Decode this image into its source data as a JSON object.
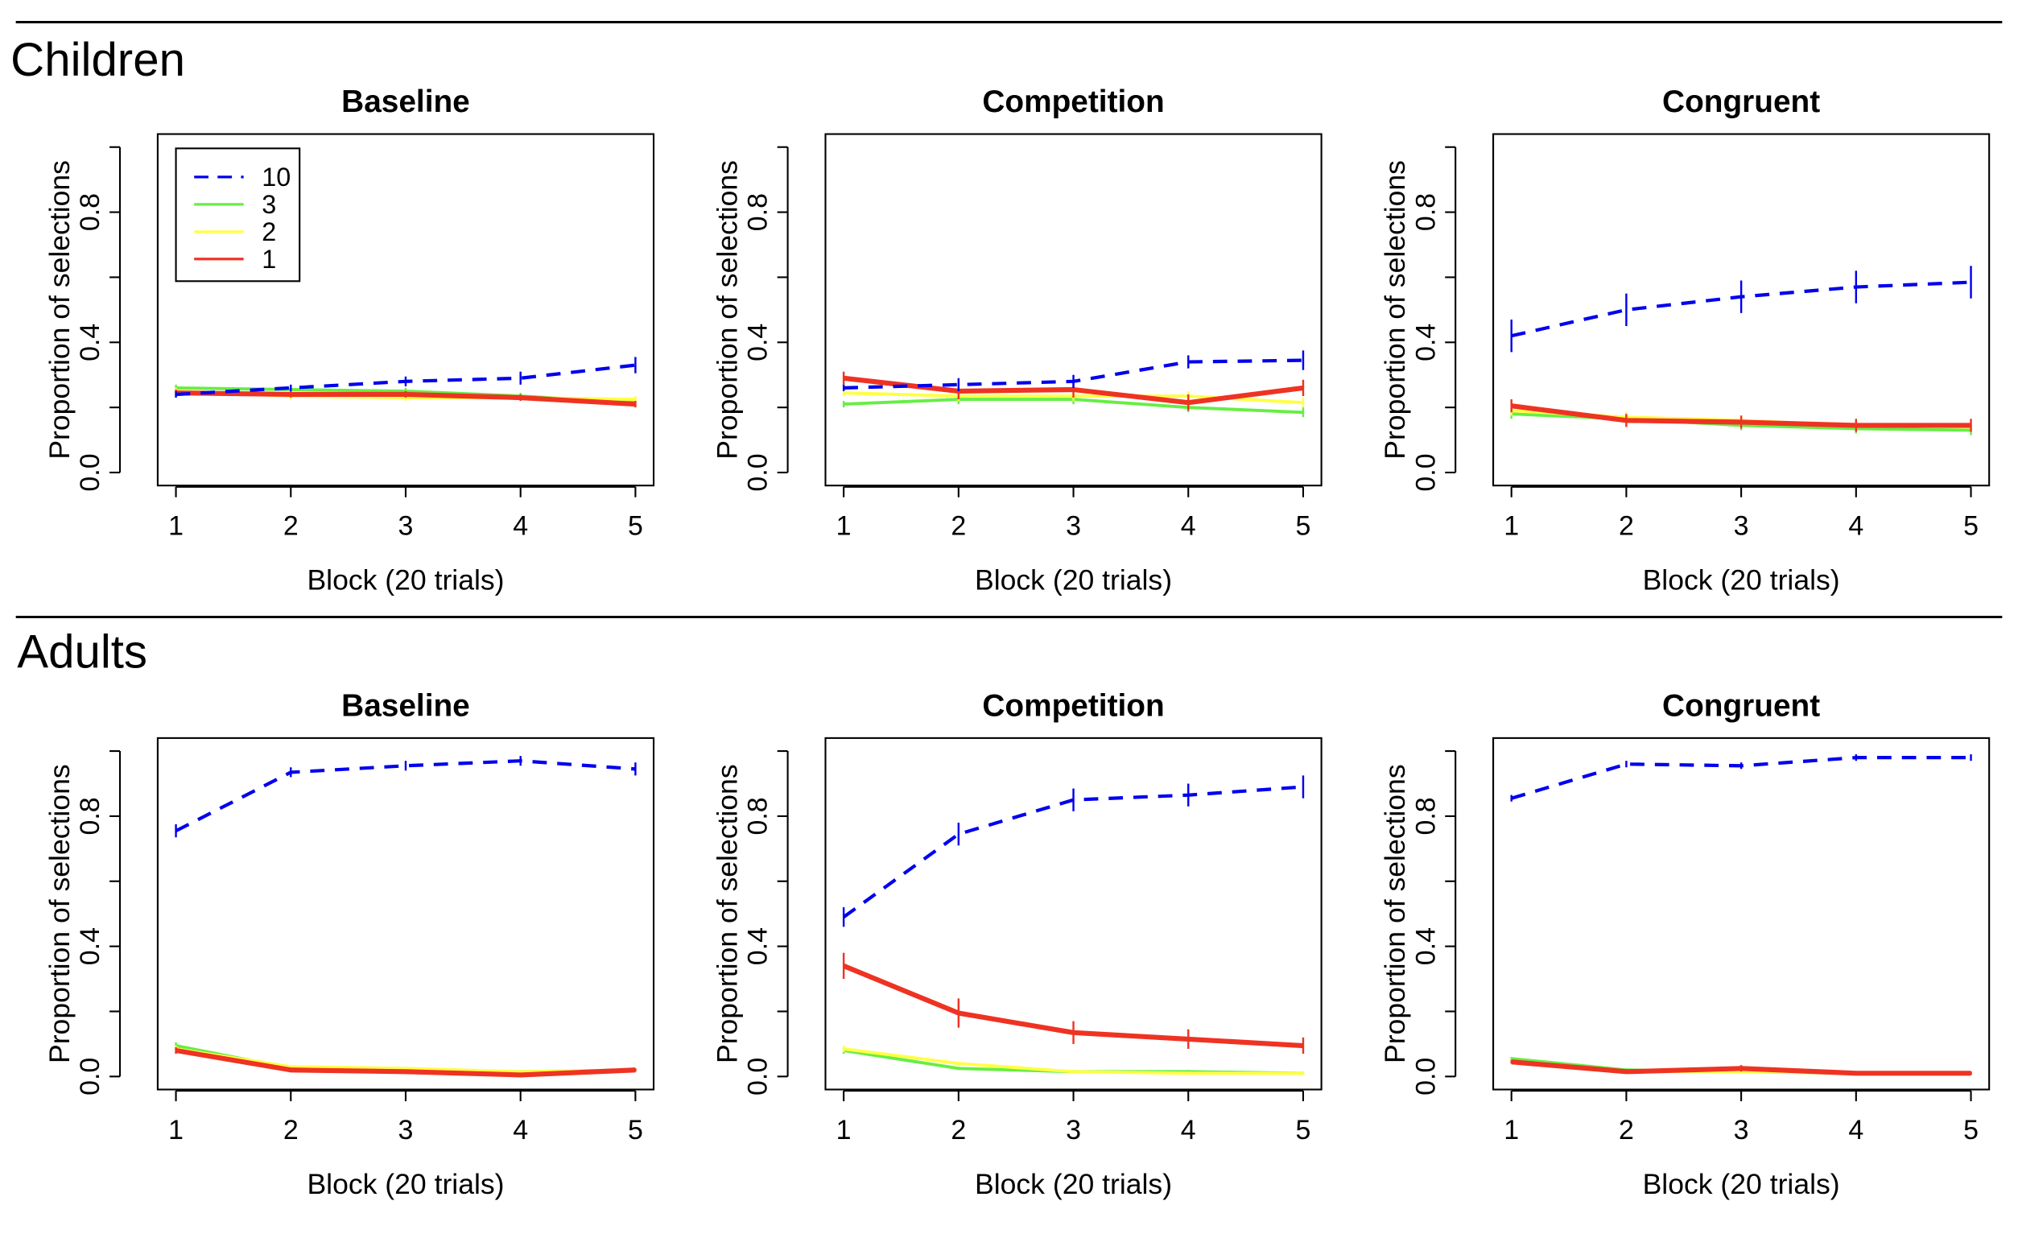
{
  "groups": [
    {
      "label": "Children"
    },
    {
      "label": "Adults"
    }
  ],
  "legend": [
    {
      "label": "10",
      "color": "#0000ee",
      "dashed": true
    },
    {
      "label": "3",
      "color": "#66ee44",
      "dashed": false
    },
    {
      "label": "2",
      "color": "#ffff44",
      "dashed": false
    },
    {
      "label": "1",
      "color": "#ee3322",
      "dashed": false
    }
  ],
  "chart_data": [
    {
      "type": "line",
      "group": "Children",
      "title": "Baseline",
      "xlabel": "Block (20 trials)",
      "ylabel": "Proportion of selections",
      "x": [
        1,
        2,
        3,
        4,
        5
      ],
      "ylim": [
        0,
        1
      ],
      "yticks": [
        "0.0",
        "0.4",
        "0.8"
      ],
      "legend": "top-left",
      "series": [
        {
          "name": "10",
          "values": [
            0.24,
            0.26,
            0.28,
            0.29,
            0.33
          ],
          "errors": [
            0.01,
            0.01,
            0.015,
            0.02,
            0.025
          ]
        },
        {
          "name": "3",
          "values": [
            0.26,
            0.255,
            0.25,
            0.235,
            0.215
          ],
          "errors": [
            0.01,
            0.01,
            0.01,
            0.01,
            0.01
          ]
        },
        {
          "name": "2",
          "values": [
            0.25,
            0.235,
            0.23,
            0.23,
            0.225
          ],
          "errors": [
            0.01,
            0.01,
            0.01,
            0.01,
            0.01
          ]
        },
        {
          "name": "1",
          "values": [
            0.245,
            0.24,
            0.24,
            0.23,
            0.21
          ],
          "errors": [
            0.01,
            0.01,
            0.01,
            0.01,
            0.01
          ]
        }
      ]
    },
    {
      "type": "line",
      "group": "Children",
      "title": "Competition",
      "xlabel": "Block (20 trials)",
      "ylabel": "Proportion of selections",
      "x": [
        1,
        2,
        3,
        4,
        5
      ],
      "ylim": [
        0,
        1
      ],
      "yticks": [
        "0.0",
        "0.4",
        "0.8"
      ],
      "series": [
        {
          "name": "10",
          "values": [
            0.26,
            0.27,
            0.28,
            0.34,
            0.345
          ],
          "errors": [
            0.01,
            0.02,
            0.02,
            0.02,
            0.03
          ]
        },
        {
          "name": "3",
          "values": [
            0.21,
            0.225,
            0.225,
            0.2,
            0.185
          ],
          "errors": [
            0.01,
            0.015,
            0.015,
            0.015,
            0.015
          ]
        },
        {
          "name": "2",
          "values": [
            0.245,
            0.235,
            0.235,
            0.235,
            0.215
          ],
          "errors": [
            0.01,
            0.015,
            0.015,
            0.015,
            0.015
          ]
        },
        {
          "name": "1",
          "values": [
            0.29,
            0.25,
            0.255,
            0.215,
            0.26
          ],
          "errors": [
            0.02,
            0.025,
            0.025,
            0.025,
            0.025
          ]
        }
      ]
    },
    {
      "type": "line",
      "group": "Children",
      "title": "Congruent",
      "xlabel": "Block (20 trials)",
      "ylabel": "Proportion of selections",
      "x": [
        1,
        2,
        3,
        4,
        5
      ],
      "ylim": [
        0,
        1
      ],
      "yticks": [
        "0.0",
        "0.4",
        "0.8"
      ],
      "series": [
        {
          "name": "10",
          "values": [
            0.42,
            0.5,
            0.54,
            0.57,
            0.585
          ],
          "errors": [
            0.05,
            0.05,
            0.05,
            0.05,
            0.05
          ]
        },
        {
          "name": "3",
          "values": [
            0.18,
            0.165,
            0.145,
            0.135,
            0.13
          ],
          "errors": [
            0.015,
            0.015,
            0.015,
            0.015,
            0.015
          ]
        },
        {
          "name": "2",
          "values": [
            0.19,
            0.17,
            0.16,
            0.145,
            0.14
          ],
          "errors": [
            0.015,
            0.015,
            0.015,
            0.015,
            0.015
          ]
        },
        {
          "name": "1",
          "values": [
            0.205,
            0.16,
            0.155,
            0.145,
            0.145
          ],
          "errors": [
            0.02,
            0.02,
            0.02,
            0.02,
            0.02
          ]
        }
      ]
    },
    {
      "type": "line",
      "group": "Adults",
      "title": "Baseline",
      "xlabel": "Block (20 trials)",
      "ylabel": "Proportion of selections",
      "x": [
        1,
        2,
        3,
        4,
        5
      ],
      "ylim": [
        0,
        1
      ],
      "yticks": [
        "0.0",
        "0.4",
        "0.8"
      ],
      "series": [
        {
          "name": "10",
          "values": [
            0.755,
            0.935,
            0.955,
            0.97,
            0.945
          ],
          "errors": [
            0.02,
            0.015,
            0.015,
            0.015,
            0.02
          ]
        },
        {
          "name": "3",
          "values": [
            0.095,
            0.025,
            0.02,
            0.015,
            0.02
          ],
          "errors": [
            0.01,
            0.005,
            0.005,
            0.005,
            0.005
          ]
        },
        {
          "name": "2",
          "values": [
            0.085,
            0.03,
            0.025,
            0.015,
            0.02
          ],
          "errors": [
            0.01,
            0.005,
            0.005,
            0.005,
            0.005
          ]
        },
        {
          "name": "1",
          "values": [
            0.08,
            0.02,
            0.015,
            0.005,
            0.02
          ],
          "errors": [
            0.01,
            0.005,
            0.005,
            0.005,
            0.005
          ]
        }
      ]
    },
    {
      "type": "line",
      "group": "Adults",
      "title": "Competition",
      "xlabel": "Block (20 trials)",
      "ylabel": "Proportion of selections",
      "x": [
        1,
        2,
        3,
        4,
        5
      ],
      "ylim": [
        0,
        1
      ],
      "yticks": [
        "0.0",
        "0.4",
        "0.8"
      ],
      "series": [
        {
          "name": "10",
          "values": [
            0.49,
            0.745,
            0.85,
            0.865,
            0.89
          ],
          "errors": [
            0.03,
            0.035,
            0.035,
            0.035,
            0.035
          ]
        },
        {
          "name": "3",
          "values": [
            0.08,
            0.025,
            0.015,
            0.015,
            0.01
          ],
          "errors": [
            0.01,
            0.005,
            0.005,
            0.005,
            0.005
          ]
        },
        {
          "name": "2",
          "values": [
            0.085,
            0.04,
            0.015,
            0.01,
            0.01
          ],
          "errors": [
            0.01,
            0.005,
            0.005,
            0.005,
            0.005
          ]
        },
        {
          "name": "1",
          "values": [
            0.34,
            0.195,
            0.135,
            0.115,
            0.095
          ],
          "errors": [
            0.04,
            0.045,
            0.035,
            0.03,
            0.025
          ]
        }
      ]
    },
    {
      "type": "line",
      "group": "Adults",
      "title": "Congruent",
      "xlabel": "Block (20 trials)",
      "ylabel": "Proportion of selections",
      "x": [
        1,
        2,
        3,
        4,
        5
      ],
      "ylim": [
        0,
        1
      ],
      "yticks": [
        "0.0",
        "0.4",
        "0.8"
      ],
      "series": [
        {
          "name": "10",
          "values": [
            0.855,
            0.96,
            0.955,
            0.98,
            0.98
          ],
          "errors": [
            0.01,
            0.01,
            0.01,
            0.01,
            0.01
          ]
        },
        {
          "name": "3",
          "values": [
            0.055,
            0.02,
            0.015,
            0.01,
            0.01
          ],
          "errors": [
            0.005,
            0.005,
            0.005,
            0.005,
            0.005
          ]
        },
        {
          "name": "2",
          "values": [
            0.045,
            0.015,
            0.015,
            0.01,
            0.01
          ],
          "errors": [
            0.005,
            0.005,
            0.005,
            0.005,
            0.005
          ]
        },
        {
          "name": "1",
          "values": [
            0.045,
            0.015,
            0.025,
            0.01,
            0.01
          ],
          "errors": [
            0.005,
            0.005,
            0.01,
            0.005,
            0.005
          ]
        }
      ]
    }
  ]
}
